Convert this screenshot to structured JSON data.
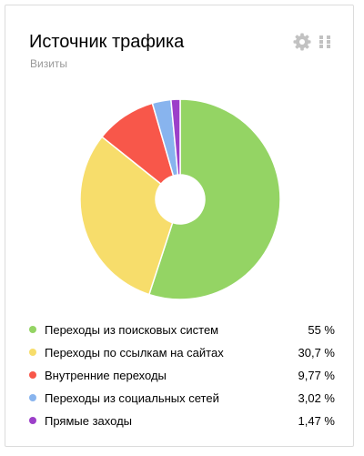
{
  "widget": {
    "title": "Источник трафика",
    "subtitle": "Визиты",
    "settings_icon": "gear-icon",
    "drag_icon": "drag-grip-icon"
  },
  "colors": {
    "search": "#94d464",
    "links": "#f7dd6b",
    "internal": "#f8574a",
    "social": "#88b4ee",
    "direct": "#9c3fc9",
    "icon": "#c2c2c2"
  },
  "legend": [
    {
      "label": "Переходы из поисковых систем",
      "value": "55 %"
    },
    {
      "label": "Переходы по ссылкам на сайтах",
      "value": "30,7 %"
    },
    {
      "label": "Внутренние переходы",
      "value": "9,77 %"
    },
    {
      "label": "Переходы из социальных сетей",
      "value": "3,02 %"
    },
    {
      "label": "Прямые заходы",
      "value": "1,47 %"
    }
  ],
  "chart_data": {
    "type": "pie",
    "donut": true,
    "categories": [
      "Переходы из поисковых систем",
      "Переходы по ссылкам на сайтах",
      "Внутренние переходы",
      "Переходы из социальных сетей",
      "Прямые заходы"
    ],
    "values": [
      55,
      30.7,
      9.77,
      3.02,
      1.47
    ],
    "colors": [
      "#94d464",
      "#f7dd6b",
      "#f8574a",
      "#88b4ee",
      "#9c3fc9"
    ],
    "title": "Источник трафика",
    "subtitle": "Визиты"
  }
}
